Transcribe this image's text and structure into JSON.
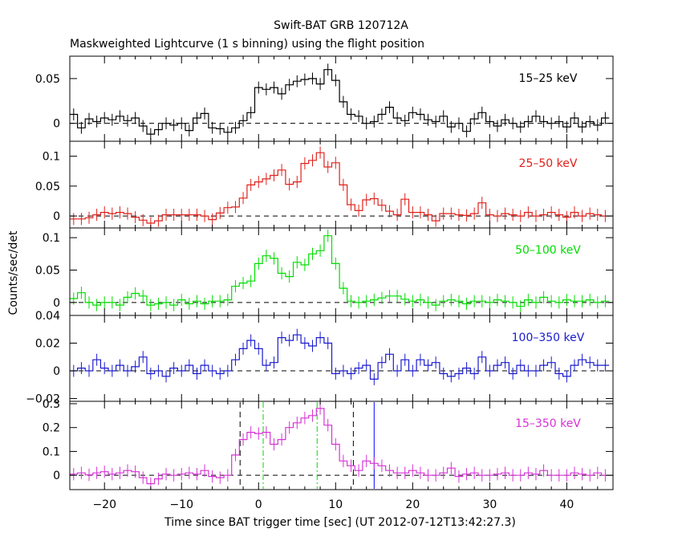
{
  "title": "Swift-BAT GRB 120712A",
  "subtitle": "Maskweighted Lightcurve (1 s binning) using the flight position",
  "xlabel": "Time since BAT trigger time [sec] (UT 2012-07-12T13:42:27.3)",
  "ylabel": "Counts/sec/det",
  "chart_data": {
    "type": "line",
    "title": "Swift-BAT GRB 120712A",
    "subtitle": "Maskweighted Lightcurve (1 s binning) using the flight position",
    "xlabel": "Time since BAT trigger time [sec] (UT 2012-07-12T13:42:27.3)",
    "ylabel": "Counts/sec/det",
    "xlim": [
      -24.5,
      46
    ],
    "x_ticks": [
      -20,
      -10,
      0,
      10,
      20,
      30,
      40
    ],
    "x_tick_labels": [
      "−20",
      "−10",
      "0",
      "10",
      "20",
      "30",
      "40"
    ],
    "legend": "in-panel text labels",
    "series": [
      {
        "name": "15–25 keV",
        "color": "#000000",
        "ylim": [
          -0.02,
          0.075
        ],
        "y_ticks": [
          0,
          0.05
        ],
        "y_tick_labels": [
          "0",
          "0.05"
        ],
        "x": [
          -24,
          -23,
          -22,
          -21,
          -20,
          -19,
          -18,
          -17,
          -16,
          -15,
          -14,
          -13,
          -12,
          -11,
          -10,
          -9,
          -8,
          -7,
          -6,
          -5,
          -4,
          -3,
          -2,
          -1,
          0,
          1,
          2,
          3,
          4,
          5,
          6,
          7,
          8,
          9,
          10,
          11,
          12,
          13,
          14,
          15,
          16,
          17,
          18,
          19,
          20,
          21,
          22,
          23,
          24,
          25,
          26,
          27,
          28,
          29,
          30,
          31,
          32,
          33,
          34,
          35,
          36,
          37,
          38,
          39,
          40,
          41,
          42,
          43,
          44,
          45
        ],
        "values": [
          0.01,
          -0.005,
          0.005,
          0.002,
          0.006,
          0.004,
          0.008,
          0.003,
          0.006,
          -0.003,
          -0.012,
          -0.007,
          0.0,
          -0.002,
          0.0,
          -0.008,
          0.006,
          0.011,
          -0.005,
          -0.006,
          -0.01,
          -0.005,
          0.003,
          0.012,
          0.04,
          0.038,
          0.04,
          0.033,
          0.043,
          0.047,
          0.049,
          0.05,
          0.044,
          0.06,
          0.048,
          0.024,
          0.01,
          0.008,
          0.0,
          0.002,
          0.01,
          0.018,
          0.006,
          0.003,
          0.012,
          0.01,
          0.004,
          0.002,
          0.008,
          -0.004,
          0.0,
          -0.009,
          0.005,
          0.012,
          0.002,
          -0.003,
          0.004,
          0.0,
          -0.004,
          0.002,
          0.008,
          0.002,
          0.0,
          0.002,
          -0.004,
          0.006,
          -0.004,
          0.002,
          -0.002,
          0.006
        ]
      },
      {
        "name": "25–50 keV",
        "color": "#e0201a",
        "ylim": [
          -0.02,
          0.125
        ],
        "y_ticks": [
          0,
          0.05,
          0.1
        ],
        "y_tick_labels": [
          "0",
          "0.05",
          "0.1"
        ],
        "x": [
          -24,
          -23,
          -22,
          -21,
          -20,
          -19,
          -18,
          -17,
          -16,
          -15,
          -14,
          -13,
          -12,
          -11,
          -10,
          -9,
          -8,
          -7,
          -6,
          -5,
          -4,
          -3,
          -2,
          -1,
          0,
          1,
          2,
          3,
          4,
          5,
          6,
          7,
          8,
          9,
          10,
          11,
          12,
          13,
          14,
          15,
          16,
          17,
          18,
          19,
          20,
          21,
          22,
          23,
          24,
          25,
          26,
          27,
          28,
          29,
          30,
          31,
          32,
          33,
          34,
          35,
          36,
          37,
          38,
          39,
          40,
          41,
          42,
          43,
          44,
          45
        ],
        "values": [
          -0.005,
          -0.005,
          -0.003,
          0.002,
          0.006,
          0.004,
          0.006,
          0.004,
          -0.002,
          -0.007,
          -0.012,
          -0.008,
          0.002,
          0.002,
          0.002,
          0.002,
          0.002,
          0.0,
          -0.006,
          0.005,
          0.014,
          0.015,
          0.03,
          0.052,
          0.057,
          0.062,
          0.068,
          0.077,
          0.053,
          0.057,
          0.088,
          0.093,
          0.106,
          0.082,
          0.089,
          0.052,
          0.019,
          0.009,
          0.027,
          0.029,
          0.018,
          0.008,
          0.002,
          0.028,
          0.006,
          0.006,
          0.002,
          -0.008,
          0.004,
          0.004,
          0.002,
          0.001,
          0.004,
          0.022,
          0.002,
          0.0,
          0.004,
          0.002,
          0.0,
          0.006,
          0.0,
          0.002,
          0.006,
          0.002,
          -0.002,
          0.006,
          0.0,
          0.004,
          0.002,
          0.0
        ]
      },
      {
        "name": "50–100 keV",
        "color": "#00dd00",
        "ylim": [
          -0.02,
          0.115
        ],
        "y_ticks": [
          0,
          0.05,
          0.1
        ],
        "y_tick_labels": [
          "0",
          "0.05",
          "0.1"
        ],
        "x": [
          -24,
          -23,
          -22,
          -21,
          -20,
          -19,
          -18,
          -17,
          -16,
          -15,
          -14,
          -13,
          -12,
          -11,
          -10,
          -9,
          -8,
          -7,
          -6,
          -5,
          -4,
          -3,
          -2,
          -1,
          0,
          1,
          2,
          3,
          4,
          5,
          6,
          7,
          8,
          9,
          10,
          11,
          12,
          13,
          14,
          15,
          16,
          17,
          18,
          19,
          20,
          21,
          22,
          23,
          24,
          25,
          26,
          27,
          28,
          29,
          30,
          31,
          32,
          33,
          34,
          35,
          36,
          37,
          38,
          39,
          40,
          41,
          42,
          43,
          44,
          45
        ],
        "values": [
          0.006,
          0.015,
          0.0,
          -0.004,
          0.0,
          0.0,
          -0.004,
          0.008,
          0.014,
          0.01,
          -0.004,
          -0.002,
          0.0,
          -0.004,
          0.004,
          -0.002,
          0.002,
          -0.002,
          0.002,
          0.002,
          0.004,
          0.025,
          0.03,
          0.033,
          0.06,
          0.072,
          0.068,
          0.045,
          0.04,
          0.062,
          0.058,
          0.075,
          0.08,
          0.103,
          0.06,
          0.022,
          0.002,
          0.0,
          0.002,
          0.004,
          0.007,
          0.01,
          0.01,
          0.005,
          0.002,
          0.004,
          0.0,
          -0.004,
          0.002,
          0.004,
          0.002,
          -0.002,
          0.002,
          0.002,
          0.0,
          0.004,
          0.002,
          0.0,
          -0.006,
          0.004,
          0.0,
          0.008,
          0.002,
          0.0,
          0.004,
          0.002,
          0.002,
          0.004,
          0.0,
          0.002
        ]
      },
      {
        "name": "100–350 keV",
        "color": "#1a1ad0",
        "ylim": [
          -0.022,
          0.04
        ],
        "y_ticks": [
          -0.02,
          0,
          0.02,
          0.04
        ],
        "y_tick_labels": [
          "−0.02",
          "0",
          "0.02",
          "0.04"
        ],
        "x": [
          -24,
          -23,
          -22,
          -21,
          -20,
          -19,
          -18,
          -17,
          -16,
          -15,
          -14,
          -13,
          -12,
          -11,
          -10,
          -9,
          -8,
          -7,
          -6,
          -5,
          -4,
          -3,
          -2,
          -1,
          0,
          1,
          2,
          3,
          4,
          5,
          6,
          7,
          8,
          9,
          10,
          11,
          12,
          13,
          14,
          15,
          16,
          17,
          18,
          19,
          20,
          21,
          22,
          23,
          24,
          25,
          26,
          27,
          28,
          29,
          30,
          31,
          32,
          33,
          34,
          35,
          36,
          37,
          38,
          39,
          40,
          41,
          42,
          43,
          44,
          45
        ],
        "values": [
          0.0,
          0.002,
          0.0,
          0.008,
          0.002,
          0.0,
          0.004,
          0.0,
          0.003,
          0.01,
          -0.002,
          0.0,
          -0.004,
          0.002,
          0.0,
          0.004,
          -0.002,
          0.004,
          0.0,
          -0.002,
          0.0,
          0.008,
          0.016,
          0.022,
          0.016,
          0.004,
          0.006,
          0.024,
          0.022,
          0.026,
          0.02,
          0.018,
          0.024,
          0.02,
          -0.002,
          0.0,
          -0.002,
          0.002,
          0.004,
          -0.006,
          0.006,
          0.012,
          0.0,
          0.008,
          0.0,
          0.008,
          0.004,
          0.006,
          -0.002,
          -0.004,
          -0.002,
          0.002,
          -0.002,
          0.01,
          0.0,
          0.004,
          0.006,
          -0.002,
          0.004,
          0.0,
          0.0,
          0.004,
          0.006,
          -0.002,
          -0.004,
          0.004,
          0.008,
          0.006,
          0.004,
          0.004
        ]
      },
      {
        "name": "15–350 keV",
        "color": "#d633d6",
        "ylim": [
          -0.06,
          0.31
        ],
        "y_ticks": [
          0,
          0.1,
          0.2,
          0.3
        ],
        "y_tick_labels": [
          "0",
          "0.1",
          "0.2",
          "0.3"
        ],
        "x": [
          -24,
          -23,
          -22,
          -21,
          -20,
          -19,
          -18,
          -17,
          -16,
          -15,
          -14,
          -13,
          -12,
          -11,
          -10,
          -9,
          -8,
          -7,
          -6,
          -5,
          -4,
          -3,
          -2,
          -1,
          0,
          1,
          2,
          3,
          4,
          5,
          6,
          7,
          8,
          9,
          10,
          11,
          12,
          13,
          14,
          15,
          16,
          17,
          18,
          19,
          20,
          21,
          22,
          23,
          24,
          25,
          26,
          27,
          28,
          29,
          30,
          31,
          32,
          33,
          34,
          35,
          36,
          37,
          38,
          39,
          40,
          41,
          42,
          43,
          44,
          45
        ],
        "values": [
          0.005,
          0.01,
          0.002,
          0.01,
          0.015,
          0.005,
          0.01,
          0.02,
          0.015,
          -0.01,
          -0.035,
          -0.015,
          0.005,
          0.0,
          0.005,
          0.01,
          0.005,
          0.02,
          -0.005,
          -0.01,
          0.0,
          0.085,
          0.15,
          0.18,
          0.175,
          0.18,
          0.13,
          0.15,
          0.2,
          0.22,
          0.24,
          0.25,
          0.28,
          0.21,
          0.13,
          0.06,
          0.04,
          0.02,
          0.06,
          0.05,
          0.04,
          0.02,
          0.01,
          0.01,
          0.02,
          0.01,
          0.0,
          0.0,
          0.01,
          0.03,
          -0.005,
          0.005,
          0.01,
          0.0,
          0.0,
          0.005,
          0.01,
          0.0,
          0.0,
          0.01,
          0.005,
          0.02,
          0.0,
          0.0,
          0.0,
          0.01,
          0.005,
          0.0,
          0.01,
          0.0
        ],
        "markers": [
          {
            "x": -2.4,
            "style": "dashed",
            "color": "#000000"
          },
          {
            "x": 12.3,
            "style": "dashed",
            "color": "#000000"
          },
          {
            "x": 0.6,
            "style": "dash-dot",
            "color": "#00dd00"
          },
          {
            "x": 7.6,
            "style": "dash-dot",
            "color": "#00dd00"
          },
          {
            "x": 15.0,
            "style": "solid",
            "color": "#0000ff"
          }
        ]
      }
    ]
  }
}
